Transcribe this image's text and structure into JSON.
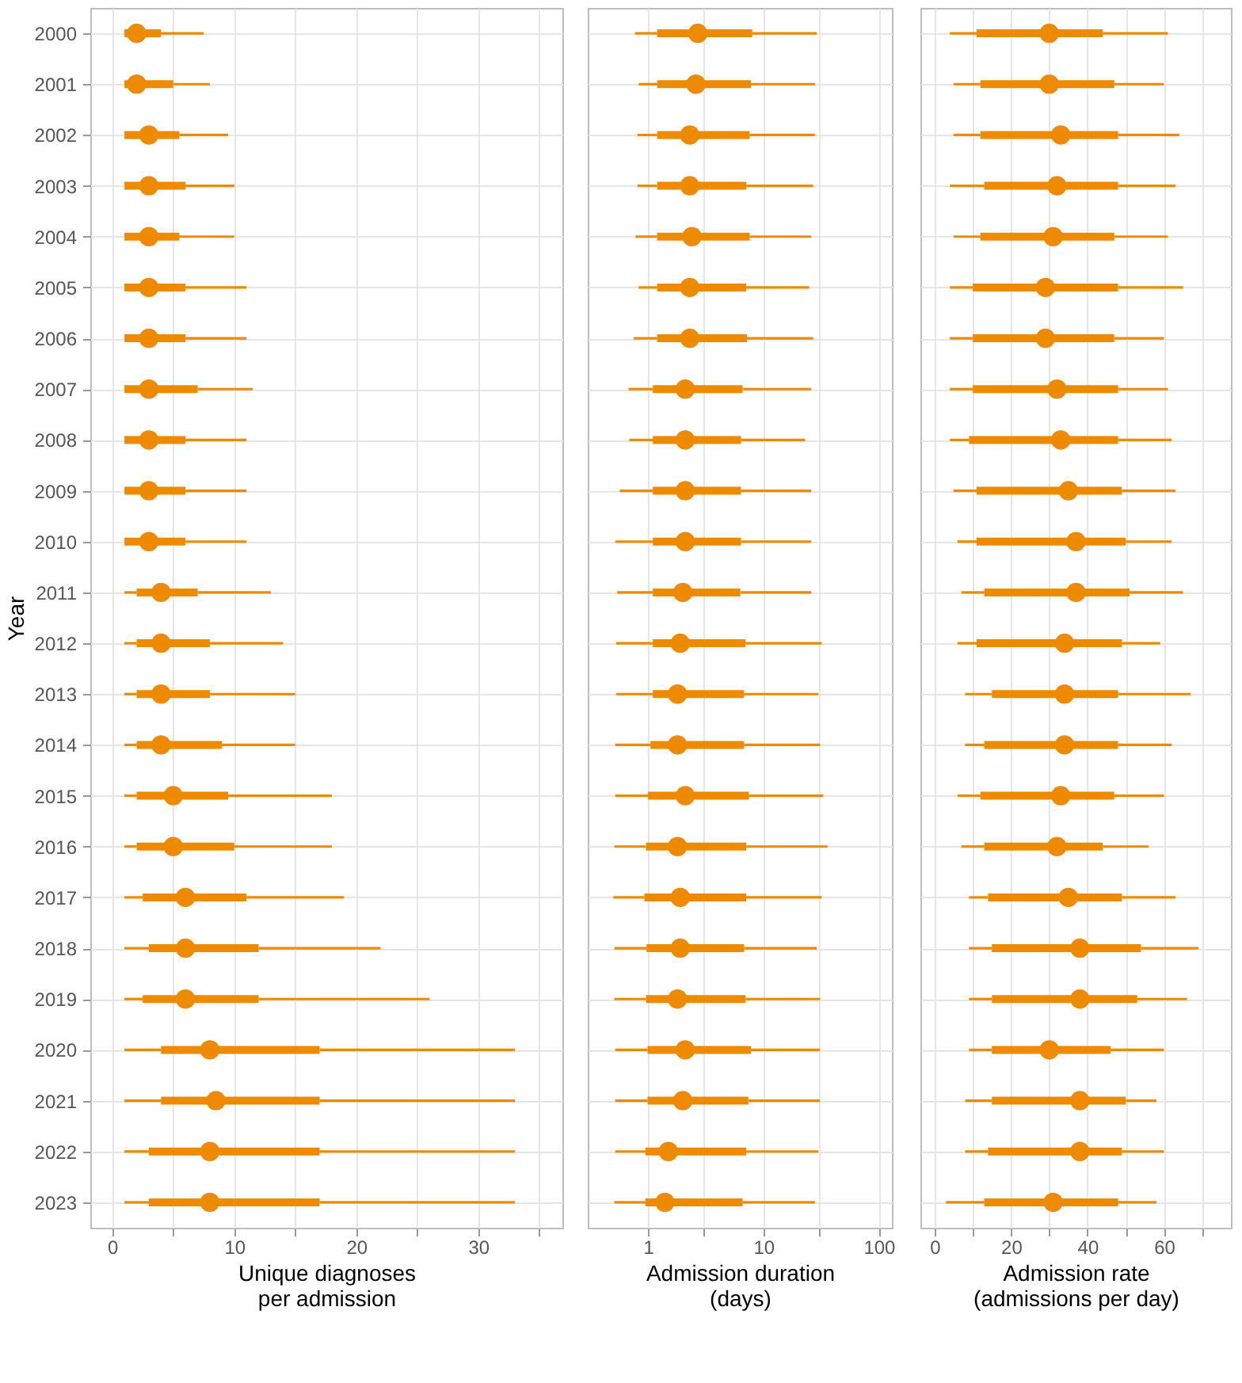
{
  "chart_data": [
    {
      "type": "box",
      "orientation": "horizontal",
      "xlabel": "Unique diagnoses\nper admission",
      "ylabel": "Year",
      "color": "#ee8a00",
      "grid": true,
      "categories": [
        "2000",
        "2001",
        "2002",
        "2003",
        "2004",
        "2005",
        "2006",
        "2007",
        "2008",
        "2009",
        "2010",
        "2011",
        "2012",
        "2013",
        "2014",
        "2015",
        "2016",
        "2017",
        "2018",
        "2019",
        "2020",
        "2021",
        "2022",
        "2023"
      ],
      "xlim": [
        -1.8,
        36.9
      ],
      "xticks": [
        0,
        {
          "value": 5,
          "label": null
        },
        10,
        {
          "value": 15,
          "label": null
        },
        20,
        {
          "value": 25,
          "label": null
        },
        30,
        {
          "value": 35,
          "label": null
        }
      ],
      "boxes": [
        {
          "low": 1,
          "q1": 1,
          "median": 2,
          "q3": 4,
          "high": 7.5
        },
        {
          "low": 1,
          "q1": 1,
          "median": 2,
          "q3": 5,
          "high": 8
        },
        {
          "low": 1,
          "q1": 1,
          "median": 3,
          "q3": 5.5,
          "high": 9.5
        },
        {
          "low": 1,
          "q1": 1,
          "median": 3,
          "q3": 6,
          "high": 10
        },
        {
          "low": 1,
          "q1": 1,
          "median": 3,
          "q3": 5.5,
          "high": 10
        },
        {
          "low": 1,
          "q1": 1,
          "median": 3,
          "q3": 6,
          "high": 11
        },
        {
          "low": 1,
          "q1": 1,
          "median": 3,
          "q3": 6,
          "high": 11
        },
        {
          "low": 1,
          "q1": 1,
          "median": 3,
          "q3": 7,
          "high": 11.5
        },
        {
          "low": 1,
          "q1": 1,
          "median": 3,
          "q3": 6,
          "high": 11
        },
        {
          "low": 1,
          "q1": 1,
          "median": 3,
          "q3": 6,
          "high": 11
        },
        {
          "low": 1,
          "q1": 1,
          "median": 3,
          "q3": 6,
          "high": 11
        },
        {
          "low": 1,
          "q1": 2,
          "median": 4,
          "q3": 7,
          "high": 13
        },
        {
          "low": 1,
          "q1": 2,
          "median": 4,
          "q3": 8,
          "high": 14
        },
        {
          "low": 1,
          "q1": 2,
          "median": 4,
          "q3": 8,
          "high": 15
        },
        {
          "low": 1,
          "q1": 2,
          "median": 4,
          "q3": 9,
          "high": 15
        },
        {
          "low": 1,
          "q1": 2,
          "median": 5,
          "q3": 9.5,
          "high": 18
        },
        {
          "low": 1,
          "q1": 2,
          "median": 5,
          "q3": 10,
          "high": 18
        },
        {
          "low": 1,
          "q1": 2.5,
          "median": 6,
          "q3": 11,
          "high": 19
        },
        {
          "low": 1,
          "q1": 3,
          "median": 6,
          "q3": 12,
          "high": 22
        },
        {
          "low": 1,
          "q1": 2.5,
          "median": 6,
          "q3": 12,
          "high": 26
        },
        {
          "low": 1,
          "q1": 4,
          "median": 8,
          "q3": 17,
          "high": 33
        },
        {
          "low": 1,
          "q1": 4,
          "median": 8.5,
          "q3": 17,
          "high": 33
        },
        {
          "low": 1,
          "q1": 3,
          "median": 8,
          "q3": 17,
          "high": 33
        },
        {
          "low": 1,
          "q1": 3,
          "median": 8,
          "q3": 17,
          "high": 33
        }
      ]
    },
    {
      "type": "box",
      "orientation": "horizontal",
      "xlabel": "Admission duration\n(days)",
      "color": "#ee8a00",
      "grid": true,
      "log": "x",
      "tick_labels": "x",
      "categories": [
        "2000",
        "2001",
        "2002",
        "2003",
        "2004",
        "2005",
        "2006",
        "2007",
        "2008",
        "2009",
        "2010",
        "2011",
        "2012",
        "2013",
        "2014",
        "2015",
        "2016",
        "2017",
        "2018",
        "2019",
        "2020",
        "2021",
        "2022",
        "2023"
      ],
      "xlim": [
        0.3,
        130
      ],
      "xticks": [
        1,
        {
          "value": 3,
          "label": null
        },
        10,
        {
          "value": 30,
          "label": null
        },
        100
      ],
      "boxes": [
        {
          "low": 0.77,
          "q1": 1.2,
          "median": 2.7,
          "q3": 8,
          "high": 29
        },
        {
          "low": 0.83,
          "q1": 1.2,
          "median": 2.6,
          "q3": 7.8,
          "high": 28
        },
        {
          "low": 0.81,
          "q1": 1.2,
          "median": 2.3,
          "q3": 7.6,
          "high": 28
        },
        {
          "low": 0.81,
          "q1": 1.2,
          "median": 2.3,
          "q3": 7.1,
          "high": 27
        },
        {
          "low": 0.78,
          "q1": 1.2,
          "median": 2.4,
          "q3": 7.6,
          "high": 26
        },
        {
          "low": 0.83,
          "q1": 1.2,
          "median": 2.3,
          "q3": 7.1,
          "high": 25
        },
        {
          "low": 0.75,
          "q1": 1.2,
          "median": 2.3,
          "q3": 7.2,
          "high": 27
        },
        {
          "low": 0.68,
          "q1": 1.1,
          "median": 2.1,
          "q3": 6.6,
          "high": 26
        },
        {
          "low": 0.69,
          "q1": 1.1,
          "median": 2.1,
          "q3": 6.4,
          "high": 23
        },
        {
          "low": 0.57,
          "q1": 1.1,
          "median": 2.1,
          "q3": 6.4,
          "high": 26
        },
        {
          "low": 0.52,
          "q1": 1.1,
          "median": 2.1,
          "q3": 6.4,
          "high": 26
        },
        {
          "low": 0.54,
          "q1": 1.1,
          "median": 2,
          "q3": 6.3,
          "high": 26
        },
        {
          "low": 0.53,
          "q1": 1.1,
          "median": 1.9,
          "q3": 7,
          "high": 32
        },
        {
          "low": 0.53,
          "q1": 1.1,
          "median": 1.8,
          "q3": 6.8,
          "high": 30
        },
        {
          "low": 0.52,
          "q1": 1.05,
          "median": 1.8,
          "q3": 6.8,
          "high": 31
        },
        {
          "low": 0.52,
          "q1": 1,
          "median": 2.1,
          "q3": 7.5,
          "high": 33
        },
        {
          "low": 0.51,
          "q1": 0.96,
          "median": 1.8,
          "q3": 7.1,
          "high": 36
        },
        {
          "low": 0.5,
          "q1": 0.93,
          "median": 1.9,
          "q3": 7.1,
          "high": 32
        },
        {
          "low": 0.51,
          "q1": 0.97,
          "median": 1.9,
          "q3": 6.8,
          "high": 29
        },
        {
          "low": 0.51,
          "q1": 0.96,
          "median": 1.8,
          "q3": 7,
          "high": 31
        },
        {
          "low": 0.52,
          "q1": 0.99,
          "median": 2.1,
          "q3": 7.8,
          "high": 31
        },
        {
          "low": 0.52,
          "q1": 0.99,
          "median": 2,
          "q3": 7.4,
          "high": 31
        },
        {
          "low": 0.52,
          "q1": 0.95,
          "median": 1.5,
          "q3": 7.1,
          "high": 30
        },
        {
          "low": 0.51,
          "q1": 0.95,
          "median": 1.4,
          "q3": 6.6,
          "high": 28
        }
      ]
    },
    {
      "type": "box",
      "orientation": "horizontal",
      "xlabel": "Admission rate\n(admissions per day)",
      "color": "#ee8a00",
      "grid": true,
      "tick_labels": "x",
      "categories": [
        "2000",
        "2001",
        "2002",
        "2003",
        "2004",
        "2005",
        "2006",
        "2007",
        "2008",
        "2009",
        "2010",
        "2011",
        "2012",
        "2013",
        "2014",
        "2015",
        "2016",
        "2017",
        "2018",
        "2019",
        "2020",
        "2021",
        "2022",
        "2023"
      ],
      "xlim": [
        -3.7,
        77.5
      ],
      "xticks": [
        0,
        {
          "value": 10,
          "label": null
        },
        20,
        {
          "value": 30,
          "label": null
        },
        40,
        {
          "value": 50,
          "label": null
        },
        60,
        {
          "value": 70,
          "label": null
        }
      ],
      "boxes": [
        {
          "low": 4,
          "q1": 11,
          "median": 30,
          "q3": 44,
          "high": 61
        },
        {
          "low": 5,
          "q1": 12,
          "median": 30,
          "q3": 47,
          "high": 60
        },
        {
          "low": 5,
          "q1": 12,
          "median": 33,
          "q3": 48,
          "high": 64
        },
        {
          "low": 4,
          "q1": 13,
          "median": 32,
          "q3": 48,
          "high": 63
        },
        {
          "low": 5,
          "q1": 12,
          "median": 31,
          "q3": 47,
          "high": 61
        },
        {
          "low": 4,
          "q1": 10,
          "median": 29,
          "q3": 48,
          "high": 65
        },
        {
          "low": 4,
          "q1": 10,
          "median": 29,
          "q3": 47,
          "high": 60
        },
        {
          "low": 4,
          "q1": 10,
          "median": 32,
          "q3": 48,
          "high": 61
        },
        {
          "low": 4,
          "q1": 9,
          "median": 33,
          "q3": 48,
          "high": 62
        },
        {
          "low": 5,
          "q1": 11,
          "median": 35,
          "q3": 49,
          "high": 63
        },
        {
          "low": 6,
          "q1": 11,
          "median": 37,
          "q3": 50,
          "high": 62
        },
        {
          "low": 7,
          "q1": 13,
          "median": 37,
          "q3": 51,
          "high": 65
        },
        {
          "low": 6,
          "q1": 11,
          "median": 34,
          "q3": 49,
          "high": 59
        },
        {
          "low": 8,
          "q1": 15,
          "median": 34,
          "q3": 48,
          "high": 67
        },
        {
          "low": 8,
          "q1": 13,
          "median": 34,
          "q3": 48,
          "high": 62
        },
        {
          "low": 6,
          "q1": 12,
          "median": 33,
          "q3": 47,
          "high": 60
        },
        {
          "low": 7,
          "q1": 13,
          "median": 32,
          "q3": 44,
          "high": 56
        },
        {
          "low": 9,
          "q1": 14,
          "median": 35,
          "q3": 49,
          "high": 63
        },
        {
          "low": 9,
          "q1": 15,
          "median": 38,
          "q3": 54,
          "high": 69
        },
        {
          "low": 9,
          "q1": 15,
          "median": 38,
          "q3": 53,
          "high": 66
        },
        {
          "low": 9,
          "q1": 15,
          "median": 30,
          "q3": 46,
          "high": 60
        },
        {
          "low": 8,
          "q1": 15,
          "median": 38,
          "q3": 50,
          "high": 58
        },
        {
          "low": 8,
          "q1": 14,
          "median": 38,
          "q3": 49,
          "high": 60
        },
        {
          "low": 3,
          "q1": 13,
          "median": 31,
          "q3": 48,
          "high": 58
        }
      ]
    }
  ]
}
